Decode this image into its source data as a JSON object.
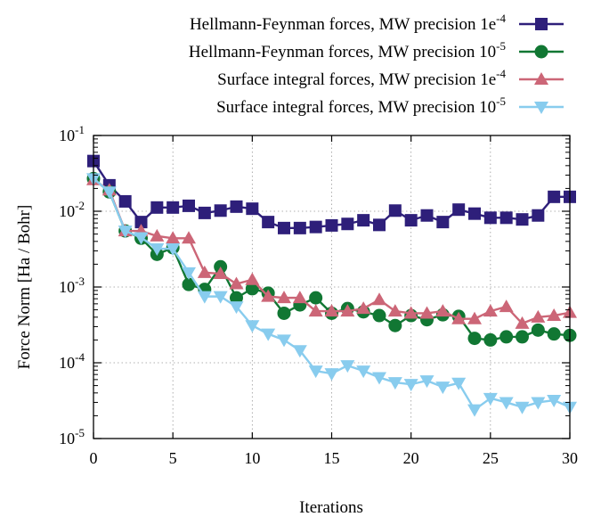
{
  "chart_data": {
    "type": "line",
    "xlabel": "Iterations",
    "ylabel": "Force Norm [Ha / Bohr]",
    "xlim": [
      0,
      30
    ],
    "ylim": [
      1e-05,
      0.1
    ],
    "yscale": "log",
    "grid": true,
    "legend_position": "top-right",
    "x_ticks": [
      "0",
      "5",
      "10",
      "15",
      "20",
      "25",
      "30"
    ],
    "y_ticks": [
      {
        "base": "10",
        "exp": "-5"
      },
      {
        "base": "10",
        "exp": "-4"
      },
      {
        "base": "10",
        "exp": "-3"
      },
      {
        "base": "10",
        "exp": "-2"
      },
      {
        "base": "10",
        "exp": "-1"
      }
    ],
    "x": [
      0,
      1,
      2,
      3,
      4,
      5,
      6,
      7,
      8,
      9,
      10,
      11,
      12,
      13,
      14,
      15,
      16,
      17,
      18,
      19,
      20,
      21,
      22,
      23,
      24,
      25,
      26,
      27,
      28,
      29,
      30
    ],
    "series": [
      {
        "name": "Hellmann-Feynman forces, MW precision 1e-4",
        "name_text": "Hellmann-Feynman forces, MW precision 1e",
        "name_sup": "-4",
        "color": "#2e1f7a",
        "marker": "square",
        "values": [
          0.046,
          0.022,
          0.0135,
          0.0072,
          0.0112,
          0.0112,
          0.0118,
          0.0095,
          0.0102,
          0.0115,
          0.0108,
          0.0072,
          0.006,
          0.006,
          0.0062,
          0.0065,
          0.0068,
          0.0076,
          0.0066,
          0.0102,
          0.0076,
          0.0088,
          0.0072,
          0.0105,
          0.0093,
          0.0082,
          0.0082,
          0.0078,
          0.0088,
          0.0155,
          0.0155
        ]
      },
      {
        "name": "Hellmann-Feynman forces, MW precision 10-5",
        "name_text": "Hellmann-Feynman forces, MW precision 10",
        "name_sup": "-5",
        "color": "#117733",
        "marker": "circle",
        "values": [
          0.027,
          0.018,
          0.0055,
          0.0044,
          0.0027,
          0.0033,
          0.00108,
          0.00093,
          0.00185,
          0.00072,
          0.00095,
          0.00083,
          0.00045,
          0.00058,
          0.00072,
          0.00045,
          0.00052,
          0.00047,
          0.00042,
          0.00031,
          0.00042,
          0.00037,
          0.00043,
          0.00041,
          0.00021,
          0.0002,
          0.00022,
          0.00022,
          0.00027,
          0.00024,
          0.00023
        ]
      },
      {
        "name": "Surface integral forces, MW precision 1e-4",
        "name_text": "Surface integral forces, MW precision 1e",
        "name_sup": "-4",
        "color": "#cc6677",
        "marker": "triangle-up",
        "values": [
          0.026,
          0.019,
          0.0055,
          0.0055,
          0.0047,
          0.0044,
          0.0044,
          0.00155,
          0.0015,
          0.0011,
          0.00125,
          0.00075,
          0.00072,
          0.00072,
          0.00048,
          0.00048,
          0.00048,
          0.00052,
          0.00068,
          0.00048,
          0.00045,
          0.00045,
          0.00048,
          0.00038,
          0.00038,
          0.00048,
          0.00055,
          0.00033,
          0.0004,
          0.00042,
          0.00046
        ]
      },
      {
        "name": "Surface integral forces, MW precision 10-5",
        "name_text": "Surface integral forces, MW precision 10",
        "name_sup": "-5",
        "color": "#88ccee",
        "marker": "triangle-down",
        "values": [
          0.027,
          0.018,
          0.0055,
          0.0045,
          0.0032,
          0.0032,
          0.00155,
          0.00075,
          0.00075,
          0.00055,
          0.00031,
          0.00024,
          0.0002,
          0.000145,
          7.8e-05,
          7.2e-05,
          9.2e-05,
          7.8e-05,
          6.4e-05,
          5.5e-05,
          5.2e-05,
          5.8e-05,
          4.8e-05,
          5.4e-05,
          2.4e-05,
          3.4e-05,
          3e-05,
          2.6e-05,
          3e-05,
          3.2e-05,
          2.6e-05
        ]
      }
    ]
  }
}
